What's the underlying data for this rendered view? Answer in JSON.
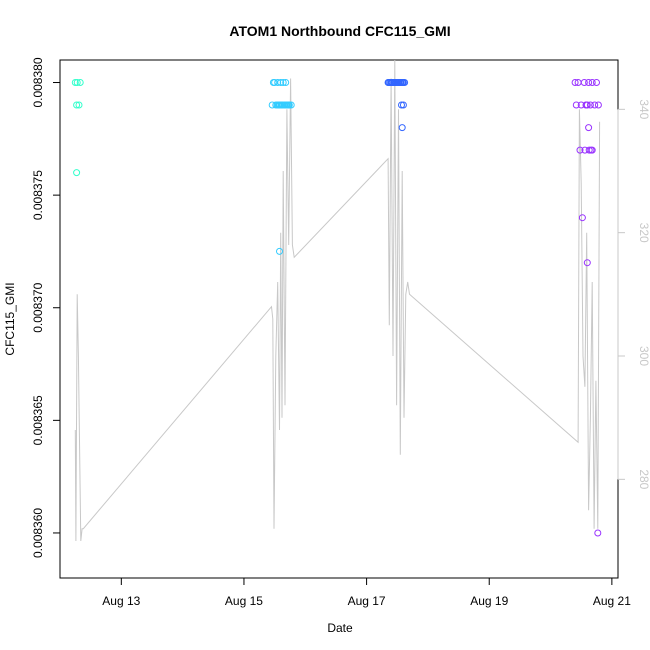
{
  "chart_data": {
    "type": "scatter",
    "title": "ATOM1 Northbound CFC115_GMI",
    "xlabel": "Date",
    "ylabel": "CFC115_GMI",
    "x_ticks": [
      {
        "value": 13,
        "label": "Aug 13"
      },
      {
        "value": 15,
        "label": "Aug 15"
      },
      {
        "value": 17,
        "label": "Aug 17"
      },
      {
        "value": 19,
        "label": "Aug 19"
      },
      {
        "value": 21,
        "label": "Aug 21"
      }
    ],
    "xlim": [
      12.0,
      21.1
    ],
    "ylim": [
      0.008358,
      0.008381
    ],
    "y_ticks": [
      {
        "value": 0.00836,
        "label": "0.008360"
      },
      {
        "value": 0.008365,
        "label": "0.008365"
      },
      {
        "value": 0.00837,
        "label": "0.008370"
      },
      {
        "value": 0.008375,
        "label": "0.008375"
      },
      {
        "value": 0.00838,
        "label": "0.008380"
      }
    ],
    "y2lim": [
      264,
      348
    ],
    "y2_ticks": [
      {
        "value": 280,
        "label": "280"
      },
      {
        "value": 300,
        "label": "300"
      },
      {
        "value": 320,
        "label": "320"
      },
      {
        "value": 340,
        "label": "340"
      }
    ],
    "line_color": "#c8c8c8",
    "series": [
      {
        "color": "#33ffcc",
        "x": [
          12.25,
          12.28,
          12.33,
          12.27,
          12.31,
          12.27
        ],
        "y": [
          0.00838,
          0.00838,
          0.00838,
          0.008379,
          0.008379,
          0.008376
        ]
      },
      {
        "color": "#33ccff",
        "x": [
          15.48,
          15.5,
          15.55,
          15.6,
          15.64,
          15.68,
          15.7,
          15.72,
          15.54,
          15.57,
          15.62,
          15.66,
          15.73,
          15.77,
          15.52,
          15.58,
          15.63,
          15.69,
          15.74,
          15.56,
          15.61,
          15.67,
          15.59,
          15.46,
          15.58
        ],
        "y": [
          0.00838,
          0.00838,
          0.00838,
          0.00838,
          0.00838,
          0.00838,
          0.008379,
          0.008379,
          0.008379,
          0.008379,
          0.008379,
          0.008379,
          0.008379,
          0.008379,
          0.008379,
          0.008379,
          0.008379,
          0.008379,
          0.008379,
          0.008379,
          0.008379,
          0.008379,
          0.008379,
          0.008379,
          0.0083725
        ]
      },
      {
        "color": "#3366ff",
        "x": [
          17.35,
          17.38,
          17.42,
          17.45,
          17.48,
          17.52,
          17.55,
          17.58,
          17.4,
          17.44,
          17.5,
          17.56,
          17.6,
          17.62,
          17.36,
          17.47,
          17.53,
          17.59,
          17.41,
          17.57,
          17.6,
          17.58
        ],
        "y": [
          0.00838,
          0.00838,
          0.00838,
          0.00838,
          0.00838,
          0.00838,
          0.00838,
          0.00838,
          0.00838,
          0.00838,
          0.00838,
          0.00838,
          0.00838,
          0.00838,
          0.00838,
          0.00838,
          0.00838,
          0.00838,
          0.00838,
          0.008379,
          0.008379,
          0.008378
        ]
      },
      {
        "color": "#9933ff",
        "x": [
          20.4,
          20.45,
          20.55,
          20.62,
          20.68,
          20.75,
          20.42,
          20.58,
          20.65,
          20.78,
          20.5,
          20.6,
          20.72,
          20.48,
          20.63,
          20.56,
          20.58,
          20.62,
          20.68,
          20.66,
          20.52,
          20.6,
          20.77
        ],
        "y": [
          0.00838,
          0.00838,
          0.00838,
          0.00838,
          0.00838,
          0.00838,
          0.008379,
          0.008379,
          0.008379,
          0.008379,
          0.008379,
          0.008379,
          0.008379,
          0.008377,
          0.008377,
          0.008377,
          0.008379,
          0.008378,
          0.008377,
          0.008377,
          0.008374,
          0.008372,
          0.00836
        ]
      }
    ],
    "line_series": {
      "x": [
        12.25,
        12.26,
        12.28,
        12.3,
        12.32,
        12.34,
        12.36,
        12.38,
        15.45,
        15.47,
        15.49,
        15.52,
        15.55,
        15.58,
        15.6,
        15.62,
        15.64,
        15.67,
        15.7,
        15.73,
        15.76,
        15.79,
        15.82,
        17.35,
        17.37,
        17.4,
        17.43,
        17.46,
        17.49,
        17.52,
        17.55,
        17.58,
        17.61,
        17.64,
        17.67,
        17.7,
        20.45,
        20.47,
        20.5,
        20.53,
        20.56,
        20.59,
        20.62,
        20.65,
        20.68,
        20.71,
        20.74,
        20.77,
        20.8
      ],
      "y": [
        288,
        270,
        310,
        300,
        285,
        270,
        272,
        272,
        308,
        306,
        272,
        300,
        312,
        288,
        320,
        290,
        330,
        292,
        340,
        318,
        345,
        318,
        316,
        332,
        305,
        345,
        300,
        348,
        292,
        340,
        284,
        330,
        290,
        310,
        312,
        310,
        286,
        340,
        328,
        300,
        295,
        320,
        275,
        290,
        312,
        272,
        296,
        272,
        338
      ]
    }
  }
}
